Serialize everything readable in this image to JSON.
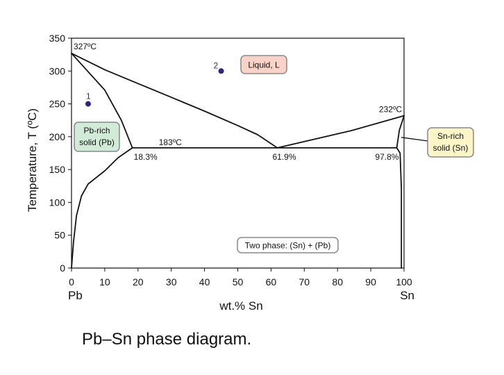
{
  "caption": "Pb–Sn phase diagram.",
  "chart_data": {
    "type": "line",
    "title": "",
    "xlabel": "wt.% Sn",
    "ylabel": "Temperature, T (ºC)",
    "xlim": [
      0,
      100
    ],
    "ylim": [
      0,
      350
    ],
    "x_ticks": [
      0,
      10,
      20,
      30,
      40,
      50,
      60,
      70,
      80,
      90,
      100
    ],
    "y_ticks": [
      0,
      50,
      100,
      150,
      200,
      250,
      300,
      350
    ],
    "x_end_labels": {
      "left": "Pb",
      "right": "Sn"
    },
    "series": [
      {
        "name": "liquidus-left",
        "points": [
          [
            0,
            327
          ],
          [
            10,
            302
          ],
          [
            20,
            281
          ],
          [
            30,
            260
          ],
          [
            40,
            239
          ],
          [
            50,
            217
          ],
          [
            56,
            203
          ],
          [
            61.9,
            183
          ]
        ]
      },
      {
        "name": "liquidus-right",
        "points": [
          [
            61.9,
            183
          ],
          [
            72,
            195
          ],
          [
            84,
            209
          ],
          [
            100,
            232
          ]
        ]
      },
      {
        "name": "solidus-left",
        "points": [
          [
            0,
            327
          ],
          [
            10,
            271
          ],
          [
            15,
            225
          ],
          [
            18.3,
            183
          ]
        ]
      },
      {
        "name": "solvus-left",
        "points": [
          [
            18.3,
            183
          ],
          [
            14,
            168
          ],
          [
            10,
            148
          ],
          [
            5,
            128
          ],
          [
            3,
            110
          ],
          [
            1.5,
            80
          ],
          [
            0.6,
            40
          ],
          [
            0,
            0
          ]
        ]
      },
      {
        "name": "eutectic-isotherm",
        "points": [
          [
            18.3,
            183
          ],
          [
            97.8,
            183
          ]
        ]
      },
      {
        "name": "solidus-right",
        "points": [
          [
            97.8,
            183
          ],
          [
            98.6,
            210
          ],
          [
            100,
            232
          ]
        ]
      },
      {
        "name": "solvus-right",
        "points": [
          [
            97.8,
            183
          ],
          [
            98.8,
            175
          ],
          [
            99.2,
            120
          ],
          [
            99.2,
            0
          ]
        ]
      }
    ],
    "points": [
      {
        "label": "1",
        "x": 5,
        "y": 250
      },
      {
        "label": "2",
        "x": 45,
        "y": 300
      }
    ],
    "annotations": [
      {
        "text": "327ºC",
        "x": 0,
        "y": 327
      },
      {
        "text": "183ºC",
        "x": 30,
        "y": 183
      },
      {
        "text": "232ºC",
        "x": 100,
        "y": 232
      },
      {
        "text": "18.3%",
        "x": 18.3,
        "y": 183
      },
      {
        "text": "61.9%",
        "x": 61.9,
        "y": 183
      },
      {
        "text": "97.8%",
        "x": 97.8,
        "y": 183
      }
    ],
    "regions": [
      {
        "text": "Liquid, L",
        "color": "#f9d3c8"
      },
      {
        "text": [
          "Pb-rich",
          "solid (Pb)"
        ],
        "color": "#d2ead8"
      },
      {
        "text": [
          "Sn-rich",
          "solid (Sn)"
        ],
        "color": "#fbf5c8"
      },
      {
        "text": "Two phase: (Sn) + (Pb)",
        "color": "#ffffff"
      }
    ],
    "colors": {
      "phase_lines": "#111111",
      "point_marker": "#2b2a7a",
      "box_border": "#888888"
    }
  }
}
